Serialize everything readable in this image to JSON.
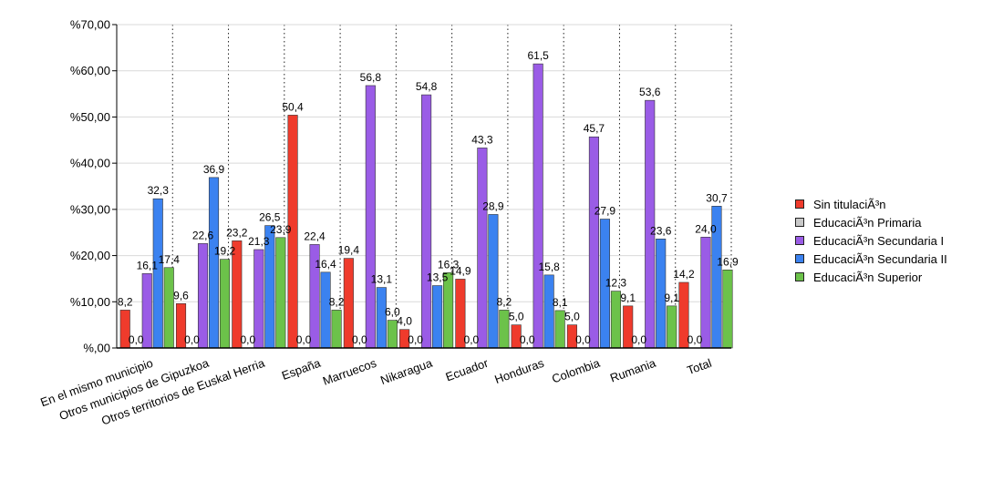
{
  "chart_data": {
    "type": "bar",
    "title": "",
    "xlabel": "",
    "ylabel": "",
    "ylim": [
      0,
      70
    ],
    "y_tick_labels": [
      "%,00",
      "%10,00",
      "%20,00",
      "%30,00",
      "%40,00",
      "%50,00",
      "%60,00",
      "%70,00"
    ],
    "grid": "vertical dotted",
    "legend_position": "right",
    "categories": [
      "En el mismo municipio",
      "Otros municipios de Gipuzkoa",
      "Otros territorios de Euskal Herria",
      "España",
      "Marruecos",
      "Nikaragua",
      "Ecuador",
      "Honduras",
      "Colombia",
      "Rumania",
      "Total"
    ],
    "series": [
      {
        "name": "Sin titulaciÃ³n",
        "color": "#ef3b2c",
        "values": [
          8.2,
          9.6,
          23.2,
          50.4,
          19.4,
          4.0,
          14.9,
          5.0,
          5.0,
          9.1,
          14.2
        ],
        "labels": [
          "8,2",
          "9,6",
          "23,2",
          "50,4",
          "19,4",
          "4,0",
          "14,9",
          "5,0",
          "5,0",
          "9,1",
          "14,2"
        ]
      },
      {
        "name": "EducaciÃ³n Primaria",
        "color": "#c8c8c8",
        "values": [
          0,
          0,
          0,
          0,
          0,
          0,
          0,
          0,
          0,
          0,
          0
        ],
        "labels": [
          "0,0",
          "0,0",
          "0,0",
          "0,0",
          "0,0",
          "0,0",
          "0,0",
          "0,0",
          "0,0",
          "0,0",
          "0,0"
        ]
      },
      {
        "name": "EducaciÃ³n Secundaria I",
        "color": "#9a5ce6",
        "values": [
          16.1,
          22.6,
          21.3,
          22.4,
          56.8,
          54.8,
          43.3,
          61.5,
          45.7,
          53.6,
          24.0
        ],
        "labels": [
          "16,1",
          "22,6",
          "21,3",
          "22,4",
          "56,8",
          "54,8",
          "43,3",
          "61,5",
          "45,7",
          "53,6",
          "24,0"
        ]
      },
      {
        "name": "EducaciÃ³n Secundaria II",
        "color": "#3b82f0",
        "values": [
          32.3,
          36.9,
          26.5,
          16.4,
          13.1,
          13.5,
          28.9,
          15.8,
          27.9,
          23.6,
          30.7
        ],
        "labels": [
          "32,3",
          "36,9",
          "26,5",
          "16,4",
          "13,1",
          "13,5",
          "28,9",
          "15,8",
          "27,9",
          "23,6",
          "30,7"
        ]
      },
      {
        "name": "EducaciÃ³n Superior",
        "color": "#6cc24a",
        "values": [
          17.4,
          19.2,
          23.9,
          8.2,
          6.0,
          16.3,
          8.2,
          8.1,
          12.3,
          9.1,
          16.9
        ],
        "labels": [
          "17,4",
          "19,2",
          "23,9",
          "8,2",
          "6,0",
          "16,3",
          "8,2",
          "8,1",
          "12,3",
          "9,1",
          "16,9"
        ]
      }
    ]
  }
}
